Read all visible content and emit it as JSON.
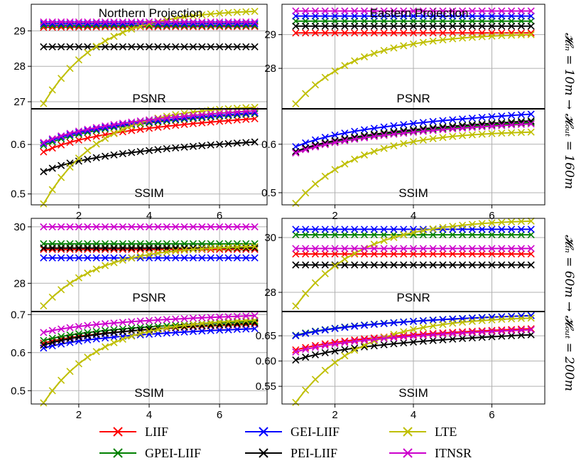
{
  "chart_data": {
    "type": "line",
    "column_titles": [
      "Northern Projection",
      "Eastern Projection"
    ],
    "row_labels": [
      "𝓗ᵢₙ = 10m → 𝓗ₒᵤₜ = 160m",
      "𝓗ᵢₙ = 60m → 𝓗ₒᵤₜ = 200m"
    ],
    "x": [
      1,
      1.25,
      1.5,
      1.75,
      2,
      2.25,
      2.5,
      2.75,
      3,
      3.25,
      3.5,
      3.75,
      4,
      4.25,
      4.5,
      4.75,
      5,
      5.25,
      5.5,
      5.75,
      6,
      6.25,
      6.5,
      6.75,
      7
    ],
    "xlim": [
      0.65,
      7.35
    ],
    "xticks": [
      "2",
      "4",
      "6"
    ],
    "series": [
      {
        "name": "LIIF",
        "color": "#ff0000"
      },
      {
        "name": "GPEI-LIIF",
        "color": "#008000"
      },
      {
        "name": "GEI-LIIF",
        "color": "#0000ff"
      },
      {
        "name": "PEI-LIIF",
        "color": "#000000"
      },
      {
        "name": "LTE",
        "color": "#bfbf00"
      },
      {
        "name": "ITNSR",
        "color": "#cc00cc"
      }
    ],
    "panels": [
      {
        "id": "n10-psnr",
        "label": "PSNR",
        "ylim": [
          26.8,
          29.75
        ],
        "yticks": [
          "27",
          "28",
          "29"
        ],
        "lines": {
          "LIIF": [
            29.1,
            29.12
          ],
          "GPEI-LIIF": [
            29.15,
            29.15
          ],
          "GEI-LIIF": [
            29.2,
            29.2
          ],
          "PEI-LIIF": [
            28.55,
            28.55
          ],
          "LTE": [
            26.95,
            29.55
          ],
          "ITNSR": [
            29.25,
            29.25
          ]
        }
      },
      {
        "id": "n10-ssim",
        "label": "SSIM",
        "ylim": [
          0.478,
          0.672
        ],
        "yticks": [
          "0.5",
          "0.6"
        ],
        "lines": {
          "LIIF": [
            0.585,
            0.652
          ],
          "GPEI-LIIF": [
            0.598,
            0.662
          ],
          "GEI-LIIF": [
            0.602,
            0.664
          ],
          "PEI-LIIF": [
            0.545,
            0.605
          ],
          "LTE": [
            0.48,
            0.675
          ],
          "ITNSR": [
            0.604,
            0.668
          ]
        }
      },
      {
        "id": "e10-psnr",
        "label": "PSNR",
        "ylim": [
          26.8,
          29.9
        ],
        "yticks": [
          "28",
          "29"
        ],
        "lines": {
          "LIIF": [
            29.05,
            29.05
          ],
          "GPEI-LIIF": [
            29.4,
            29.4
          ],
          "GEI-LIIF": [
            29.55,
            29.55
          ],
          "PEI-LIIF": [
            29.25,
            29.25
          ],
          "LTE": [
            26.95,
            29.0
          ],
          "ITNSR": [
            29.7,
            29.7
          ]
        }
      },
      {
        "id": "e10-ssim",
        "label": "SSIM",
        "ylim": [
          0.475,
          0.673
        ],
        "yticks": [
          "0.5",
          "0.6"
        ],
        "lines": {
          "LIIF": [
            0.583,
            0.645
          ],
          "GPEI-LIIF": [
            0.584,
            0.645
          ],
          "GEI-LIIF": [
            0.595,
            0.662
          ],
          "PEI-LIIF": [
            0.585,
            0.648
          ],
          "LTE": [
            0.478,
            0.625
          ],
          "ITNSR": [
            0.582,
            0.642
          ]
        }
      },
      {
        "id": "n60-psnr",
        "label": "PSNR",
        "ylim": [
          27.0,
          30.3
        ],
        "yticks": [
          "28",
          "30"
        ],
        "lines": {
          "LIIF": [
            29.2,
            29.2
          ],
          "GPEI-LIIF": [
            29.4,
            29.4
          ],
          "GEI-LIIF": [
            28.9,
            28.9
          ],
          "PEI-LIIF": [
            29.25,
            29.25
          ],
          "LTE": [
            27.2,
            29.3
          ],
          "ITNSR": [
            30.0,
            30.0
          ]
        }
      },
      {
        "id": "n60-ssim",
        "label": "SSIM",
        "ylim": [
          0.465,
          0.708
        ],
        "yticks": [
          "0.5",
          "0.6",
          "0.7"
        ],
        "lines": {
          "LIIF": [
            0.625,
            0.675
          ],
          "GPEI-LIIF": [
            0.632,
            0.682
          ],
          "GEI-LIIF": [
            0.612,
            0.663
          ],
          "PEI-LIIF": [
            0.62,
            0.678
          ],
          "LTE": [
            0.468,
            0.685
          ],
          "ITNSR": [
            0.653,
            0.697
          ]
        }
      },
      {
        "id": "e60-psnr",
        "label": "PSNR",
        "ylim": [
          27.3,
          30.7
        ],
        "yticks": [
          "28",
          "30"
        ],
        "lines": {
          "LIIF": [
            29.4,
            29.4
          ],
          "GPEI-LIIF": [
            30.1,
            30.1
          ],
          "GEI-LIIF": [
            30.3,
            30.3
          ],
          "PEI-LIIF": [
            29.0,
            29.0
          ],
          "LTE": [
            27.5,
            30.6
          ],
          "ITNSR": [
            29.6,
            29.6
          ]
        }
      },
      {
        "id": "e60-ssim",
        "label": "SSIM",
        "ylim": [
          0.515,
          0.698
        ],
        "yticks": [
          "0.55",
          "0.60",
          "0.65"
        ],
        "lines": {
          "LIIF": [
            0.622,
            0.664
          ],
          "GPEI-LIIF": [
            0.651,
            0.69
          ],
          "GEI-LIIF": [
            0.65,
            0.69
          ],
          "PEI-LIIF": [
            0.602,
            0.652
          ],
          "LTE": [
            0.518,
            0.685
          ],
          "ITNSR": [
            0.618,
            0.662
          ]
        }
      }
    ],
    "legend_position": "bottom"
  }
}
